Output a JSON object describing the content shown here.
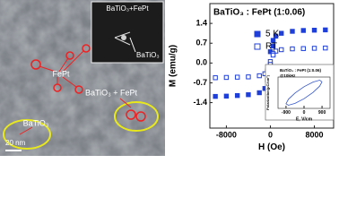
{
  "image": {
    "inset_title": "BaTiO₃+FePt",
    "inset_label": "BaTiO₃",
    "labels": [
      "FePt",
      "BaTiO₃",
      "BaTiO₃ + FePt"
    ],
    "scale_bar": "20 nm"
  },
  "chart_data": [
    {
      "type": "scatter",
      "title": "BaTiO₃ : FePt (1:0.06)",
      "x_label": "H (Oe)",
      "y_label": "M (emu/g)",
      "xlim": [
        -11000,
        11500
      ],
      "xticks": [
        -8000,
        0,
        8000
      ],
      "ylim": [
        -2.3,
        2.1
      ],
      "yticks": [
        -1.4,
        -0.7,
        {
          "value": 0,
          "label": "0.0"
        },
        0.7,
        1.4
      ],
      "series": [
        {
          "name": "5 K",
          "color": "#1f3fd8",
          "marker": "filled",
          "x": [
            10000,
            8000,
            6000,
            4000,
            2000,
            1000,
            500,
            0,
            -500,
            -1000,
            -2000,
            -4000,
            -6000,
            -8000,
            -10000,
            0,
            500
          ],
          "values": [
            1.17,
            1.16,
            1.15,
            1.12,
            1.05,
            0.95,
            0.8,
            0.4,
            -0.6,
            -0.9,
            -1.05,
            -1.12,
            -1.15,
            -1.17,
            -1.18,
            -0.4,
            0.6
          ]
        },
        {
          "name": "RT",
          "color": "#1f3fd8",
          "marker": "open",
          "x": [
            10000,
            8000,
            6000,
            4000,
            2000,
            1000,
            500,
            0,
            -500,
            -1000,
            -2000,
            -4000,
            -6000,
            -8000,
            -10000,
            0,
            500
          ],
          "values": [
            0.53,
            0.52,
            0.51,
            0.5,
            0.47,
            0.42,
            0.33,
            0.05,
            -0.28,
            -0.38,
            -0.45,
            -0.49,
            -0.5,
            -0.51,
            -0.52,
            -0.05,
            0.28
          ]
        }
      ]
    },
    {
      "type": "line",
      "title": "BaTiO₃ : FePt (1:0.06)",
      "subtitle": "@10kHz",
      "x_label": "E, V/cm",
      "y_label": "Polarization(μC/cm²)",
      "xlim": [
        -1300,
        1300
      ],
      "xticks": [
        -900,
        0,
        900
      ],
      "ylim": [
        -1,
        1
      ],
      "series": [
        {
          "color": "#3355cc",
          "x": [
            900,
            779,
            450,
            0,
            -450,
            -779,
            -900,
            -779,
            -450,
            0,
            450,
            779,
            900
          ],
          "values": [
            0.7,
            0.8,
            0.68,
            0.38,
            -0.02,
            -0.42,
            -0.7,
            -0.8,
            -0.68,
            -0.38,
            0.02,
            0.42,
            0.7
          ]
        }
      ]
    }
  ]
}
